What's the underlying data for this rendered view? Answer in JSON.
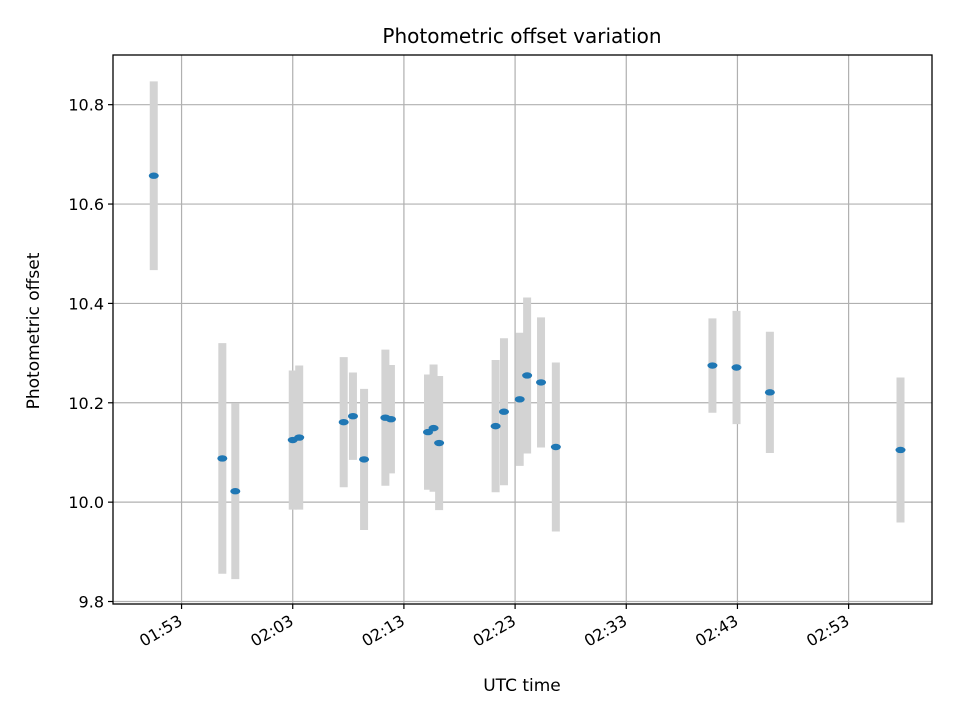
{
  "chart_data": {
    "type": "scatter",
    "title": "Photometric offset variation",
    "xlabel": "UTC time",
    "ylabel": "Photometric offset",
    "x_ticks": [
      "01:53",
      "02:03",
      "02:13",
      "02:23",
      "02:33",
      "02:43",
      "02:53"
    ],
    "y_ticks": [
      "9.8",
      "10.0",
      "10.2",
      "10.4",
      "10.6",
      "10.8"
    ],
    "xlim": [
      "01:46:50",
      "03:00:30"
    ],
    "ylim": [
      9.795,
      10.9
    ],
    "grid": true,
    "colors": {
      "marker": "#1f77b4",
      "errorbar": "#d3d3d3",
      "grid": "#b0b0b0",
      "axes": "#000000"
    },
    "points": [
      {
        "time": "01:50:30",
        "value": 10.657,
        "err": 0.19
      },
      {
        "time": "01:56:40",
        "value": 10.088,
        "err": 0.232
      },
      {
        "time": "01:57:50",
        "value": 10.022,
        "err": 0.177
      },
      {
        "time": "02:03:00",
        "value": 10.125,
        "err": 0.14
      },
      {
        "time": "02:03:35",
        "value": 10.13,
        "err": 0.145
      },
      {
        "time": "02:07:35",
        "value": 10.161,
        "err": 0.131
      },
      {
        "time": "02:08:25",
        "value": 10.173,
        "err": 0.088
      },
      {
        "time": "02:09:25",
        "value": 10.086,
        "err": 0.142
      },
      {
        "time": "02:11:20",
        "value": 10.17,
        "err": 0.137
      },
      {
        "time": "02:11:50",
        "value": 10.167,
        "err": 0.109
      },
      {
        "time": "02:15:10",
        "value": 10.141,
        "err": 0.116
      },
      {
        "time": "02:15:40",
        "value": 10.149,
        "err": 0.128
      },
      {
        "time": "02:16:10",
        "value": 10.119,
        "err": 0.135
      },
      {
        "time": "02:21:15",
        "value": 10.153,
        "err": 0.133
      },
      {
        "time": "02:22:00",
        "value": 10.182,
        "err": 0.148
      },
      {
        "time": "02:23:25",
        "value": 10.207,
        "err": 0.134
      },
      {
        "time": "02:24:05",
        "value": 10.255,
        "err": 0.157
      },
      {
        "time": "02:25:20",
        "value": 10.241,
        "err": 0.131
      },
      {
        "time": "02:26:40",
        "value": 10.111,
        "err": 0.17
      },
      {
        "time": "02:40:45",
        "value": 10.275,
        "err": 0.095
      },
      {
        "time": "02:42:55",
        "value": 10.271,
        "err": 0.114
      },
      {
        "time": "02:45:55",
        "value": 10.221,
        "err": 0.122
      },
      {
        "time": "02:57:40",
        "value": 10.105,
        "err": 0.146
      }
    ]
  }
}
